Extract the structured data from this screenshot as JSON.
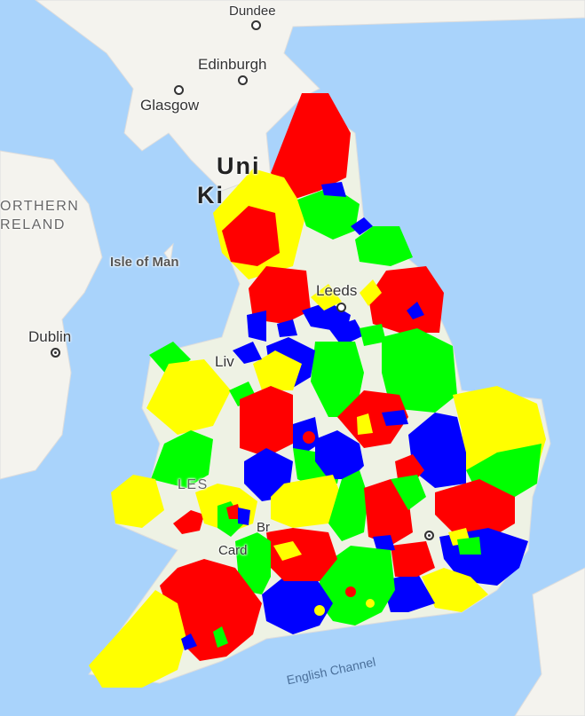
{
  "map": {
    "colors": {
      "red": "#ff0000",
      "green": "#00ff00",
      "blue": "#0000ff",
      "yellow": "#ffff00",
      "water": "#a9d3fb",
      "land": "#f4f3ee"
    },
    "labels": {
      "dundee": "Dundee",
      "edinburgh": "Edinburgh",
      "glasgow": "Glasgow",
      "uk_line1": "Uni",
      "uk_line2": "Ki",
      "ni_line1": "ORTHERN",
      "ni_line2": "RELAND",
      "isle_of_man": "Isle of Man",
      "dublin": "Dublin",
      "leeds": "Leeds",
      "liverpool": "Liv",
      "wales": "LES",
      "bristol": "Br",
      "cardiff": "Card",
      "english_channel": "English Channel"
    },
    "region_fill_palette": [
      "red",
      "green",
      "blue",
      "yellow"
    ]
  }
}
